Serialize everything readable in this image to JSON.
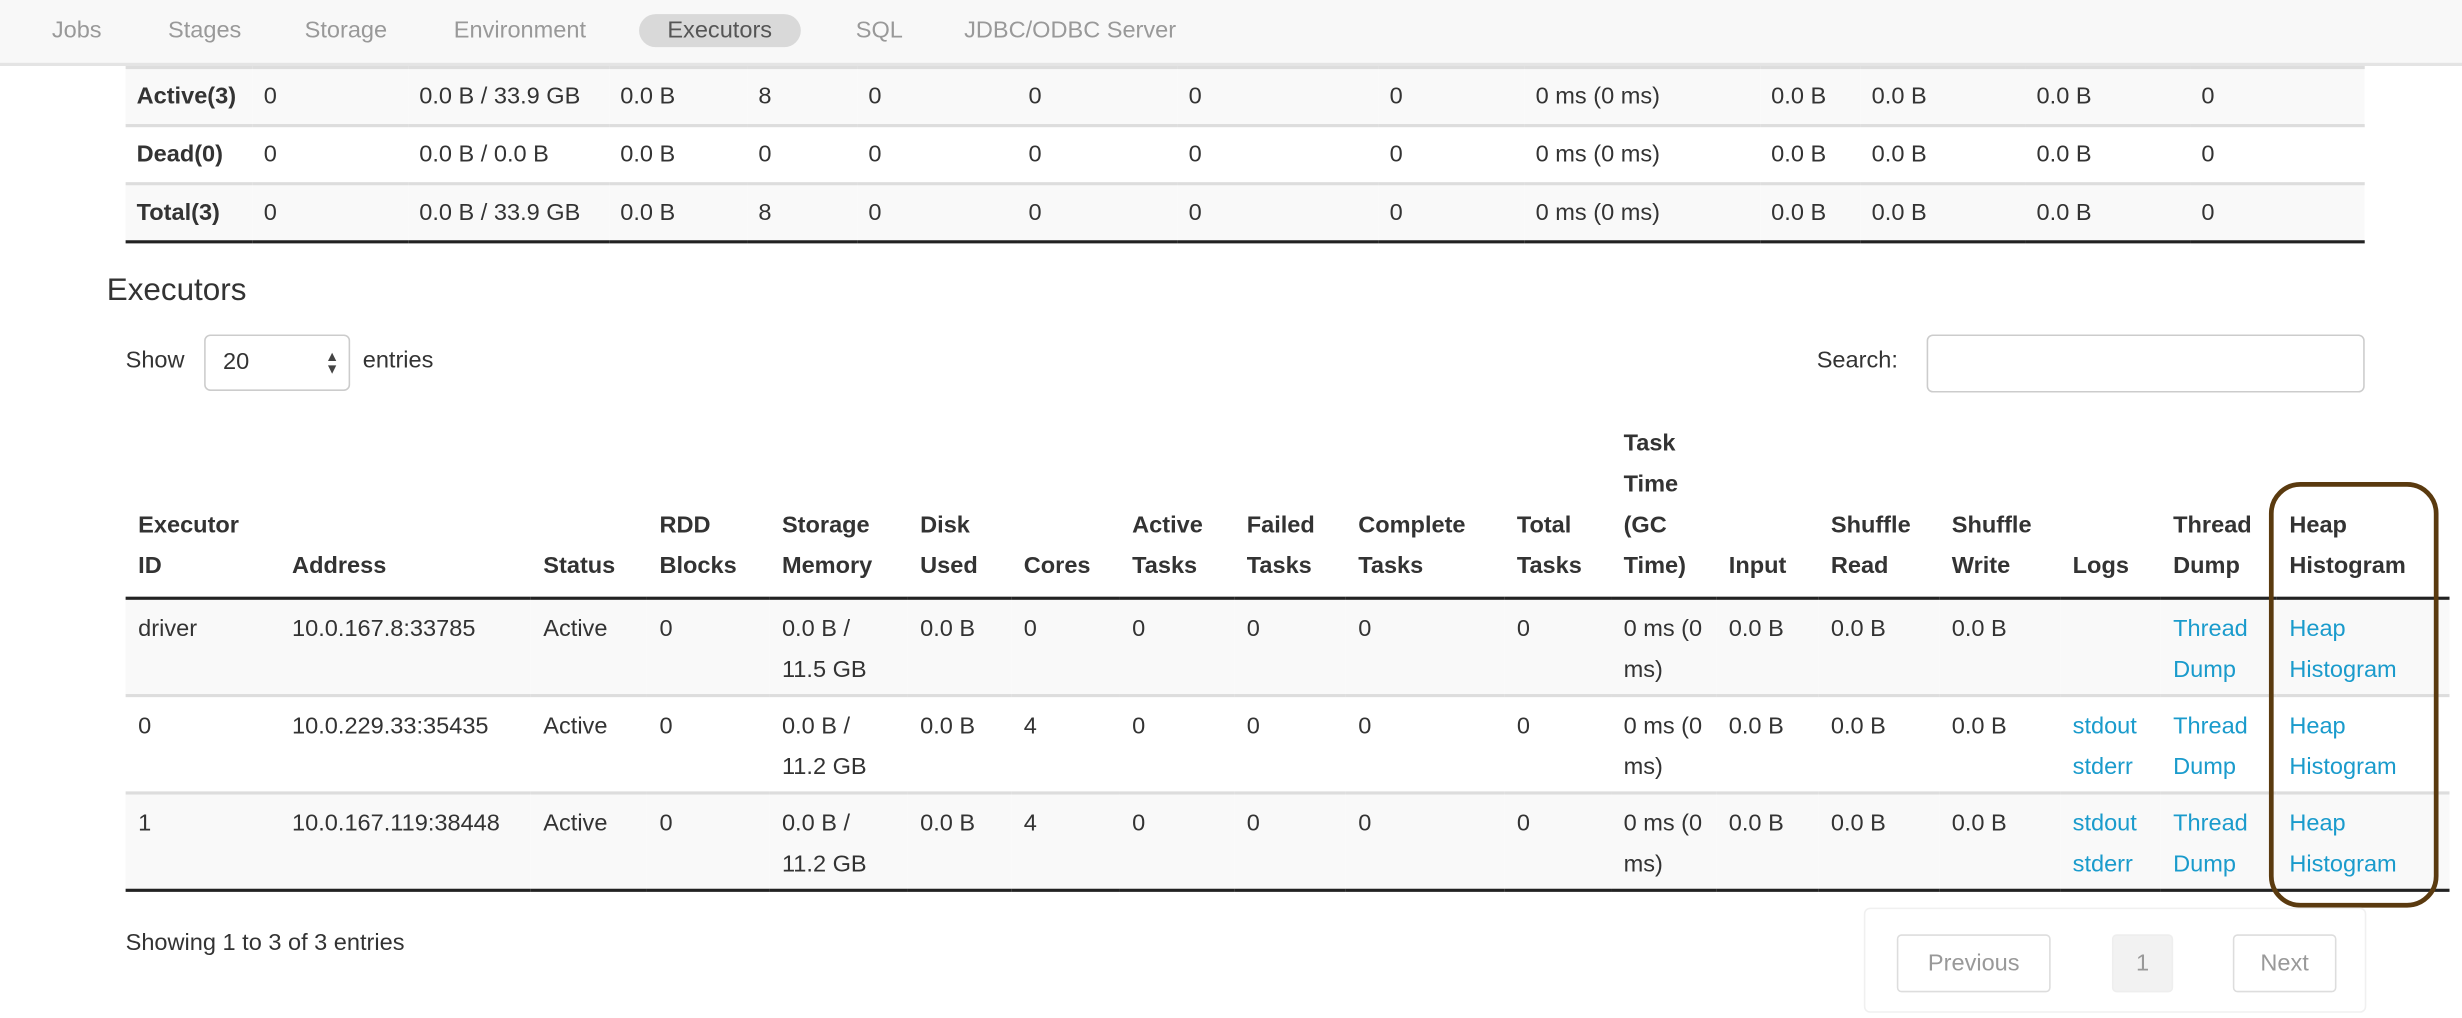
{
  "nav": {
    "tabs": [
      "Jobs",
      "Stages",
      "Storage",
      "Environment",
      "Executors",
      "SQL",
      "JDBC/ODBC Server"
    ],
    "active": "Executors"
  },
  "summary": {
    "rows": [
      [
        "Active(3)",
        "0",
        "0.0 B / 33.9 GB",
        "0.0 B",
        "8",
        "0",
        "0",
        "0",
        "0",
        "0 ms (0 ms)",
        "0.0 B",
        "0.0 B",
        "0.0 B",
        "0"
      ],
      [
        "Dead(0)",
        "0",
        "0.0 B / 0.0 B",
        "0.0 B",
        "0",
        "0",
        "0",
        "0",
        "0",
        "0 ms (0 ms)",
        "0.0 B",
        "0.0 B",
        "0.0 B",
        "0"
      ],
      [
        "Total(3)",
        "0",
        "0.0 B / 33.9 GB",
        "0.0 B",
        "8",
        "0",
        "0",
        "0",
        "0",
        "0 ms (0 ms)",
        "0.0 B",
        "0.0 B",
        "0.0 B",
        "0"
      ]
    ]
  },
  "executors": {
    "title": "Executors",
    "show_label": "Show",
    "page_size": "20",
    "entries_label": "entries",
    "search_label": "Search:",
    "search_value": "",
    "headers": [
      "Executor ID",
      "Address",
      "Status",
      "RDD Blocks",
      "Storage Memory",
      "Disk Used",
      "Cores",
      "Active Tasks",
      "Failed Tasks",
      "Complete Tasks",
      "Total Tasks",
      "Task Time (GC Time)",
      "Input",
      "Shuffle Read",
      "Shuffle Write",
      "Logs",
      "Thread Dump",
      "Heap Histogram"
    ],
    "rows": [
      {
        "cells": [
          "driver",
          "10.0.167.8:33785",
          "Active",
          "0",
          "0.0 B / 11.5 GB",
          "0.0 B",
          "0",
          "0",
          "0",
          "0",
          "0",
          "0 ms (0 ms)",
          "0.0 B",
          "0.0 B",
          "0.0 B"
        ],
        "logs": [],
        "thread": "Thread Dump",
        "heap": "Heap Histogram"
      },
      {
        "cells": [
          "0",
          "10.0.229.33:35435",
          "Active",
          "0",
          "0.0 B / 11.2 GB",
          "0.0 B",
          "4",
          "0",
          "0",
          "0",
          "0",
          "0 ms (0 ms)",
          "0.0 B",
          "0.0 B",
          "0.0 B"
        ],
        "logs": [
          "stdout",
          "stderr"
        ],
        "thread": "Thread Dump",
        "heap": "Heap Histogram"
      },
      {
        "cells": [
          "1",
          "10.0.167.119:38448",
          "Active",
          "0",
          "0.0 B / 11.2 GB",
          "0.0 B",
          "4",
          "0",
          "0",
          "0",
          "0",
          "0 ms (0 ms)",
          "0.0 B",
          "0.0 B",
          "0.0 B"
        ],
        "logs": [
          "stdout",
          "stderr"
        ],
        "thread": "Thread Dump",
        "heap": "Heap Histogram"
      }
    ],
    "info": "Showing 1 to 3 of 3 entries",
    "pagination": {
      "previous": "Previous",
      "page": "1",
      "next": "Next"
    }
  },
  "colors": {
    "link": "#1a9bcc",
    "highlight": "#5a3a0f"
  }
}
